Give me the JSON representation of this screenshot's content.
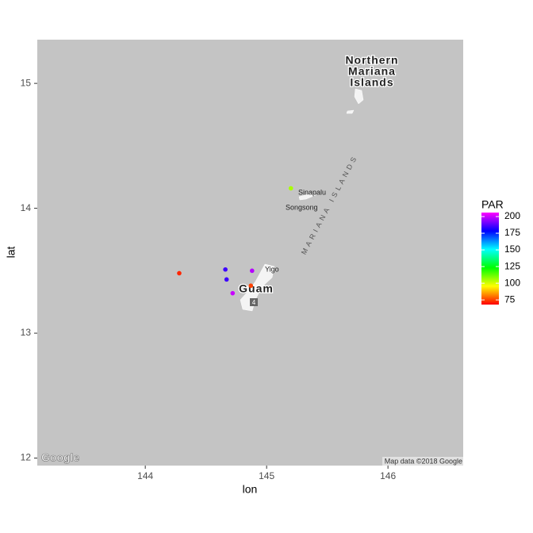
{
  "chart_data": {
    "type": "scatter",
    "x": [
      144.28,
      144.66,
      144.67,
      144.72,
      144.88,
      144.87,
      145.2
    ],
    "y": [
      13.48,
      13.51,
      13.43,
      13.32,
      13.5,
      13.38,
      14.16
    ],
    "color_values": [
      72,
      185,
      185,
      200,
      198,
      75,
      105
    ],
    "xlim": [
      143.11,
      146.62
    ],
    "ylim": [
      11.94,
      15.35
    ],
    "xticks": [
      144,
      145,
      146
    ],
    "yticks": [
      12,
      13,
      14,
      15
    ],
    "xlabel": "lon",
    "ylabel": "lat",
    "colorbar": {
      "title": "PAR",
      "lim": [
        68,
        206
      ],
      "ticks": [
        75,
        100,
        125,
        150,
        175,
        200
      ],
      "colors": [
        "#ff0000",
        "#ffff00",
        "#00ff00",
        "#00ffff",
        "#0000ff",
        "#ff00ff"
      ]
    },
    "background": "#c4c4c4",
    "map_labels": [
      "Northern",
      "Mariana",
      "Islands",
      "Sinapalu",
      "Songsong",
      "MARIANA ISLANDS",
      "Yigo",
      "Guam",
      "4",
      "Google",
      "Map data ©2018 Google"
    ]
  }
}
